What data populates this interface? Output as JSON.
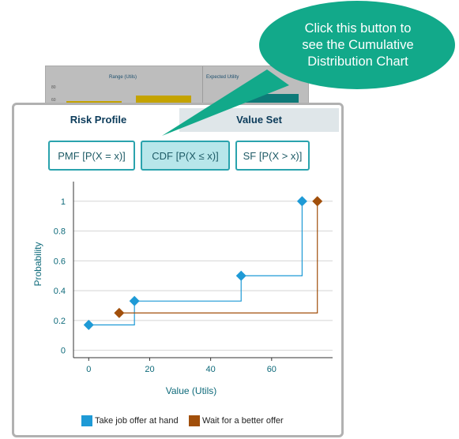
{
  "callout": {
    "lines": [
      "Click this button to",
      "see the Cumulative",
      "Distribution Chart"
    ]
  },
  "background_chart": {
    "title_left": "Range (Utils)",
    "title_right": "Expected Utility",
    "ticks": [
      "80",
      "60"
    ]
  },
  "tabs": {
    "risk_profile": "Risk Profile",
    "value_set": "Value Set"
  },
  "buttons": {
    "pmf": "PMF [P(X = x)]",
    "cdf": "CDF [P(X ≤ x)]",
    "sf": "SF [P(X > x)]"
  },
  "colors": {
    "series_1": "#1e9ad6",
    "series_2": "#a14f0b",
    "callout": "#12a98a",
    "axis_text": "#0e6a7a"
  },
  "chart_data": {
    "type": "line",
    "step": true,
    "xlabel": "Value (Utils)",
    "ylabel": "Probability",
    "xlim": [
      -5,
      80
    ],
    "ylim": [
      -0.05,
      1.1
    ],
    "x_ticks": [
      0,
      20,
      40,
      60
    ],
    "y_ticks": [
      0,
      0.2,
      0.4,
      0.6,
      0.8,
      1
    ],
    "y_tick_labels": [
      "0",
      "0.2",
      "0.4",
      "0.6",
      "0.8",
      "1"
    ],
    "grid": true,
    "legend_position": "bottom",
    "series": [
      {
        "name": "Take job offer at hand",
        "x": [
          0,
          15,
          50,
          70
        ],
        "y": [
          0.17,
          0.33,
          0.5,
          1
        ]
      },
      {
        "name": "Wait for a better offer",
        "x": [
          10,
          75
        ],
        "y": [
          0.25,
          1
        ]
      }
    ]
  }
}
